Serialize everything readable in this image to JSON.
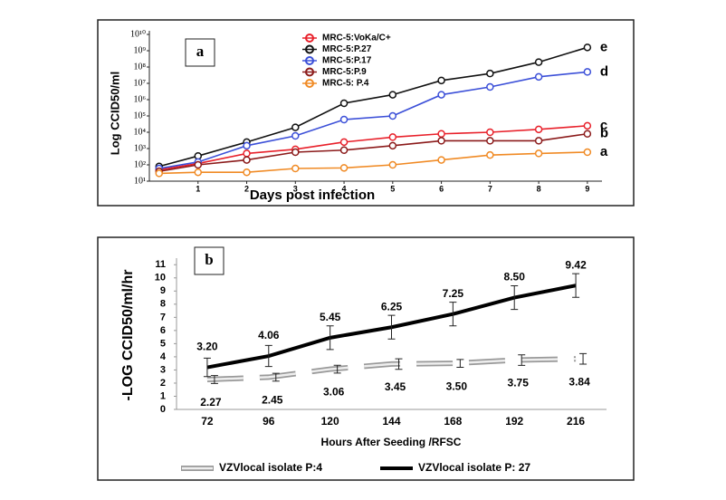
{
  "chart_data": [
    {
      "type": "line",
      "panel_label": "a",
      "xlabel": "Days post infection",
      "ylabel": "Log CCID50/ml",
      "log_y": true,
      "x": [
        0.2,
        1,
        2,
        3,
        4,
        5,
        6,
        7,
        8,
        9
      ],
      "xlim": [
        0,
        9.3
      ],
      "xticks": [
        1,
        2,
        3,
        4,
        5,
        6,
        7,
        8,
        9
      ],
      "ylim": [
        10,
        10000000000
      ],
      "yticks": [
        {
          "value": 10,
          "label": "10¹"
        },
        {
          "value": 100,
          "label": "10²"
        },
        {
          "value": 1000,
          "label": "10³"
        },
        {
          "value": 10000,
          "label": "10⁴"
        },
        {
          "value": 100000,
          "label": "10⁵"
        },
        {
          "value": 1000000,
          "label": "10⁶"
        },
        {
          "value": 10000000,
          "label": "10⁷"
        },
        {
          "value": 100000000,
          "label": "10⁸"
        },
        {
          "value": 1000000000,
          "label": "10⁹"
        },
        {
          "value": 10000000000,
          "label": "10¹⁰"
        }
      ],
      "series": [
        {
          "name": "MRC-5:VoKa/C+",
          "color": "#e8202a",
          "end_label": "c",
          "values": [
            50,
            120,
            500,
            900,
            2500,
            5000,
            8000,
            10000,
            15000,
            25000
          ]
        },
        {
          "name": "MRC-5:P.27",
          "color": "#111111",
          "end_label": "e",
          "values": [
            80,
            350,
            2500,
            20000,
            600000,
            2000000,
            15000000,
            40000000,
            200000000,
            1600000000
          ]
        },
        {
          "name": "MRC-5:P.17",
          "color": "#3b4fd8",
          "end_label": "d",
          "values": [
            60,
            150,
            1500,
            6000,
            60000,
            100000,
            2000000,
            6000000,
            25000000,
            50000000
          ]
        },
        {
          "name": "MRC-5:P.9",
          "color": "#8b1a1a",
          "end_label": "b",
          "values": [
            40,
            100,
            200,
            600,
            800,
            1500,
            3000,
            3000,
            3000,
            8000
          ]
        },
        {
          "name": "MRC-5: P.4",
          "color": "#f08a24",
          "end_label": "a",
          "values": [
            30,
            35,
            35,
            60,
            65,
            100,
            200,
            400,
            500,
            600
          ]
        }
      ]
    },
    {
      "type": "line",
      "panel_label": "b",
      "xlabel": "Hours After Seeding /RFSC",
      "ylabel": "-LOG CCID50/ml/hr",
      "categories": [
        "72",
        "96",
        "120",
        "144",
        "168",
        "192",
        "216"
      ],
      "ylim": [
        0,
        11.5
      ],
      "yticks": [
        0,
        1,
        2,
        3,
        4,
        5,
        6,
        7,
        8,
        9,
        10,
        11
      ],
      "series": [
        {
          "name": "VZVlocal isolate P:4",
          "color": "#999999",
          "dashed": true,
          "values": [
            2.27,
            2.45,
            3.06,
            3.45,
            3.5,
            3.75,
            3.84
          ],
          "value_labels": [
            "2.27",
            "2.45",
            "3.06",
            "3.45",
            "3.50",
            "3.75",
            "3.84"
          ],
          "errors": [
            0.3,
            0.3,
            0.3,
            0.4,
            0.3,
            0.4,
            0.4
          ]
        },
        {
          "name": "VZVlocal isolate P: 27",
          "color": "#000000",
          "dashed": false,
          "values": [
            3.2,
            4.06,
            5.45,
            6.25,
            7.25,
            8.5,
            9.42
          ],
          "value_labels": [
            "3.20",
            "4.06",
            "5.45",
            "6.25",
            "7.25",
            "8.50",
            "9.42"
          ],
          "errors": [
            0.7,
            0.8,
            0.9,
            0.9,
            0.9,
            0.9,
            0.9
          ]
        }
      ]
    }
  ]
}
